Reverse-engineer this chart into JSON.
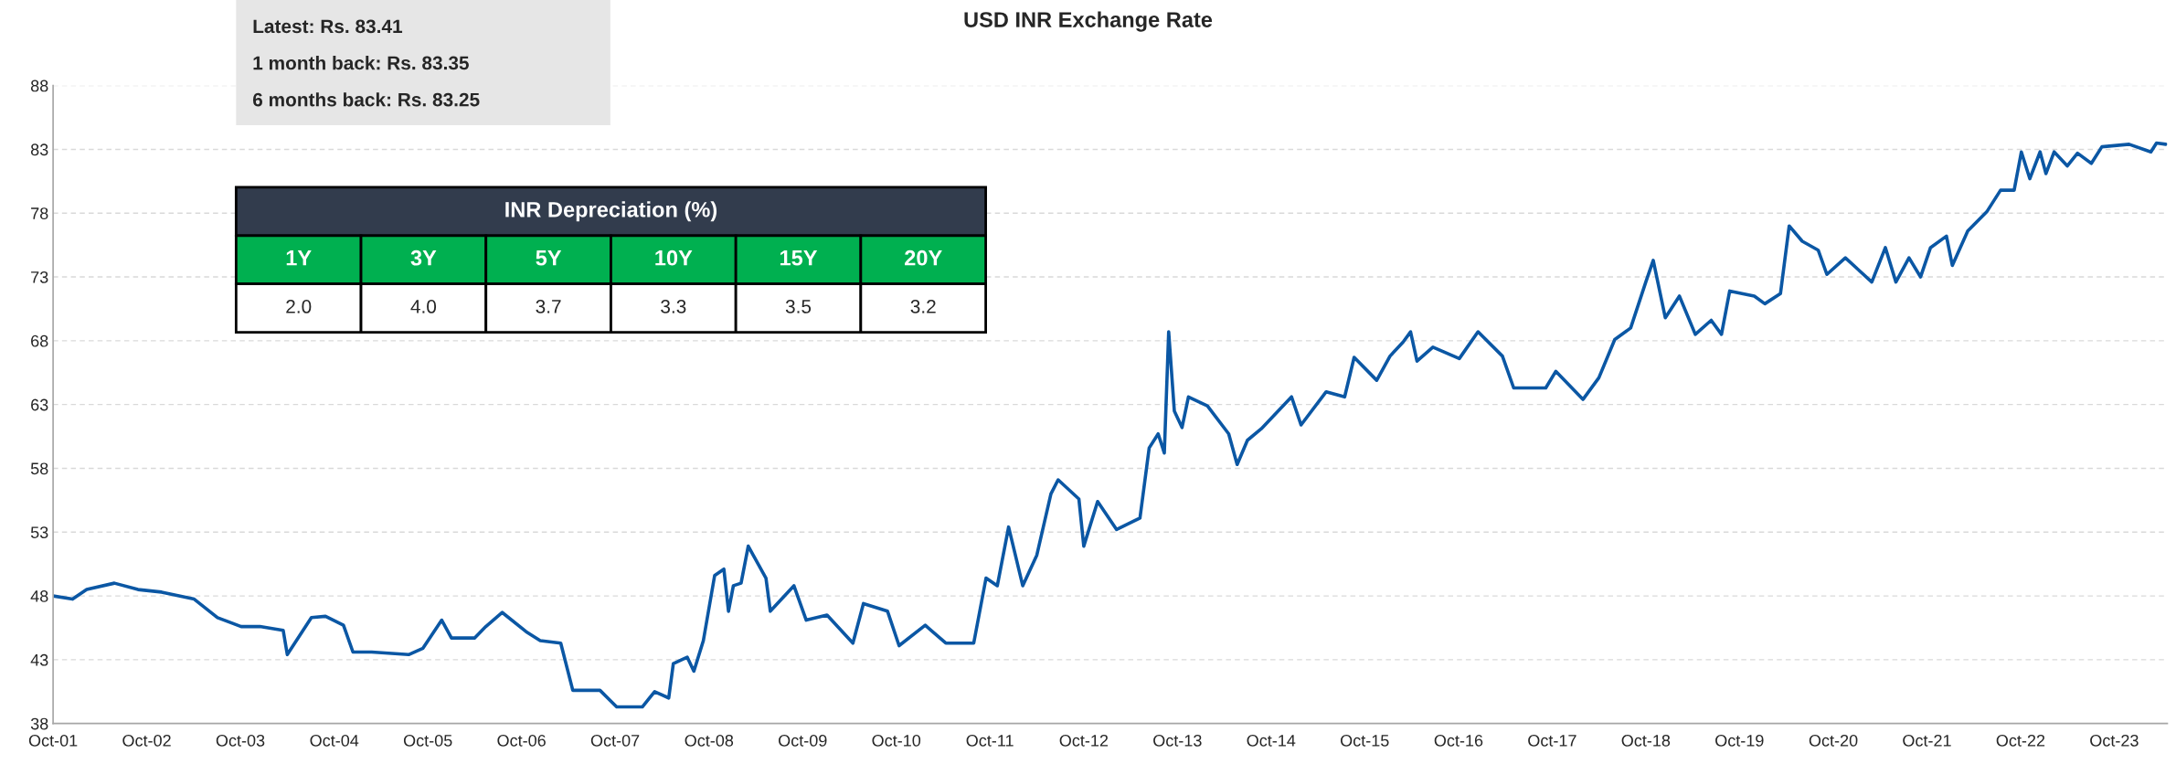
{
  "chart_data": [
    {
      "type": "line",
      "title": "USD INR Exchange Rate",
      "x": [
        "2001-10-01",
        "2001-12-16",
        "2002-02-09",
        "2002-05-28",
        "2002-08-28",
        "2002-11-28",
        "2003-04-04",
        "2003-07-04",
        "2003-10-04",
        "2003-12-16",
        "2004-03-16",
        "2004-04-01",
        "2004-07-04",
        "2004-08-28",
        "2004-11-06",
        "2004-12-13",
        "2005-02-24",
        "2005-07-18",
        "2005-09-12",
        "2005-11-24",
        "2006-01-01",
        "2006-04-01",
        "2006-05-15",
        "2006-07-18",
        "2006-10-19",
        "2006-12-13",
        "2007-03-03",
        "2007-04-19",
        "2007-08-03",
        "2007-10-07",
        "2008-01-15",
        "2008-03-03",
        "2008-04-27",
        "2008-05-15",
        "2008-07-08",
        "2008-08-03",
        "2008-09-09",
        "2008-10-23",
        "2008-11-28",
        "2008-12-16",
        "2009-01-04",
        "2009-02-03",
        "2009-03-03",
        "2009-05-11",
        "2009-05-28",
        "2009-08-28",
        "2009-10-15",
        "2010-01-04",
        "2010-04-15",
        "2010-05-26",
        "2010-08-28",
        "2010-10-12",
        "2011-01-22",
        "2011-04-12",
        "2011-07-30",
        "2011-09-16",
        "2011-10-30",
        "2011-12-13",
        "2012-02-06",
        "2012-04-01",
        "2012-05-26",
        "2012-06-23",
        "2012-09-12",
        "2012-10-01",
        "2012-11-24",
        "2013-02-06",
        "2013-05-08",
        "2013-06-13",
        "2013-07-18",
        "2013-08-11",
        "2013-08-28",
        "2013-09-19",
        "2013-10-19",
        "2013-11-13",
        "2014-01-26",
        "2014-04-19",
        "2014-05-22",
        "2014-07-01",
        "2014-08-24",
        "2014-12-20",
        "2015-01-26",
        "2015-05-04",
        "2015-07-15",
        "2015-08-21",
        "2015-11-17",
        "2016-01-08",
        "2016-02-28",
        "2016-03-28",
        "2016-04-22",
        "2016-06-23",
        "2016-10-04",
        "2016-12-16",
        "2017-03-21",
        "2017-05-04",
        "2017-09-06",
        "2017-10-15",
        "2018-01-29",
        "2018-04-01",
        "2018-06-02",
        "2018-08-03",
        "2018-10-01",
        "2018-10-30",
        "2018-12-16",
        "2019-02-09",
        "2019-04-12",
        "2019-06-13",
        "2019-07-23",
        "2019-08-24",
        "2019-11-28",
        "2020-01-08",
        "2020-03-09",
        "2020-04-12",
        "2020-06-02",
        "2020-08-03",
        "2020-09-06",
        "2020-11-17",
        "2021-02-28",
        "2021-04-22",
        "2021-06-02",
        "2021-07-23",
        "2021-09-06",
        "2021-10-15",
        "2021-12-16",
        "2022-01-08",
        "2022-03-09",
        "2022-05-22",
        "2022-07-15",
        "2022-09-06",
        "2022-10-04",
        "2022-11-06",
        "2022-12-16",
        "2023-01-08",
        "2023-02-09",
        "2023-04-01",
        "2023-05-11",
        "2023-07-04",
        "2023-08-14",
        "2023-11-28",
        "2024-02-21",
        "2024-03-14",
        "2024-04-19"
      ],
      "series": [
        {
          "color": "#0b57a4",
          "values": [
            48.0,
            47.75,
            48.5,
            49.0,
            48.5,
            48.3,
            47.75,
            46.3,
            45.6,
            45.6,
            45.3,
            43.4,
            46.3,
            46.4,
            45.7,
            43.6,
            43.6,
            43.4,
            43.9,
            46.1,
            44.7,
            44.7,
            45.6,
            46.7,
            45.2,
            44.5,
            44.3,
            40.6,
            40.6,
            39.3,
            39.3,
            40.5,
            40.0,
            42.7,
            43.2,
            42.1,
            44.5,
            49.6,
            50.1,
            46.8,
            48.8,
            49.0,
            51.9,
            49.4,
            46.8,
            48.8,
            46.1,
            46.5,
            44.3,
            47.4,
            46.8,
            44.1,
            45.7,
            44.3,
            44.3,
            49.4,
            48.8,
            53.4,
            48.8,
            51.2,
            56.0,
            57.1,
            55.6,
            51.9,
            55.4,
            53.2,
            54.1,
            59.6,
            60.7,
            59.2,
            68.7,
            62.5,
            61.2,
            63.6,
            62.9,
            60.7,
            58.3,
            60.2,
            61.1,
            63.6,
            61.4,
            64.0,
            63.6,
            66.7,
            64.9,
            66.8,
            67.9,
            68.7,
            66.4,
            67.5,
            66.6,
            68.7,
            66.8,
            64.3,
            64.3,
            65.6,
            63.4,
            65.1,
            68.1,
            69.0,
            72.6,
            74.3,
            69.8,
            71.5,
            68.5,
            69.6,
            68.5,
            71.9,
            71.5,
            70.9,
            71.7,
            77.0,
            75.8,
            75.1,
            73.2,
            74.5,
            72.6,
            75.3,
            72.6,
            74.5,
            73.0,
            75.3,
            76.2,
            73.9,
            76.6,
            78.1,
            79.8,
            79.8,
            82.8,
            80.7,
            82.8,
            81.1,
            82.8,
            81.7,
            82.7,
            81.9,
            83.2,
            83.4,
            82.8,
            83.5,
            83.4
          ]
        }
      ],
      "xlim": [
        "2001-10-01",
        "2024-04-25"
      ],
      "xticks": [
        {
          "value": "2001-10-01",
          "label": "Oct-01"
        },
        {
          "value": "2002-10-01",
          "label": "Oct-02"
        },
        {
          "value": "2003-10-01",
          "label": "Oct-03"
        },
        {
          "value": "2004-10-01",
          "label": "Oct-04"
        },
        {
          "value": "2005-10-01",
          "label": "Oct-05"
        },
        {
          "value": "2006-10-01",
          "label": "Oct-06"
        },
        {
          "value": "2007-10-01",
          "label": "Oct-07"
        },
        {
          "value": "2008-10-01",
          "label": "Oct-08"
        },
        {
          "value": "2009-10-01",
          "label": "Oct-09"
        },
        {
          "value": "2010-10-01",
          "label": "Oct-10"
        },
        {
          "value": "2011-10-01",
          "label": "Oct-11"
        },
        {
          "value": "2012-10-01",
          "label": "Oct-12"
        },
        {
          "value": "2013-10-01",
          "label": "Oct-13"
        },
        {
          "value": "2014-10-01",
          "label": "Oct-14"
        },
        {
          "value": "2015-10-01",
          "label": "Oct-15"
        },
        {
          "value": "2016-10-01",
          "label": "Oct-16"
        },
        {
          "value": "2017-10-01",
          "label": "Oct-17"
        },
        {
          "value": "2018-10-01",
          "label": "Oct-18"
        },
        {
          "value": "2019-10-01",
          "label": "Oct-19"
        },
        {
          "value": "2020-10-01",
          "label": "Oct-20"
        },
        {
          "value": "2021-10-01",
          "label": "Oct-21"
        },
        {
          "value": "2022-10-01",
          "label": "Oct-22"
        },
        {
          "value": "2023-10-01",
          "label": "Oct-23"
        }
      ],
      "ylim": [
        38,
        88
      ],
      "yticks": [
        38,
        43,
        48,
        53,
        58,
        63,
        68,
        73,
        78,
        83,
        88
      ],
      "grid": "y",
      "legend": false,
      "marker": "none",
      "line_style": "solid",
      "annotations": [
        "Latest: Rs. 83.41",
        "1 month back: Rs. 83.35",
        "6 months back: Rs. 83.25",
        "INR Depreciation (%)",
        "1Y",
        "3Y",
        "5Y",
        "10Y",
        "15Y",
        "20Y",
        "2.0",
        "4.0",
        "3.7",
        "3.3",
        "3.5",
        "3.2"
      ]
    }
  ]
}
